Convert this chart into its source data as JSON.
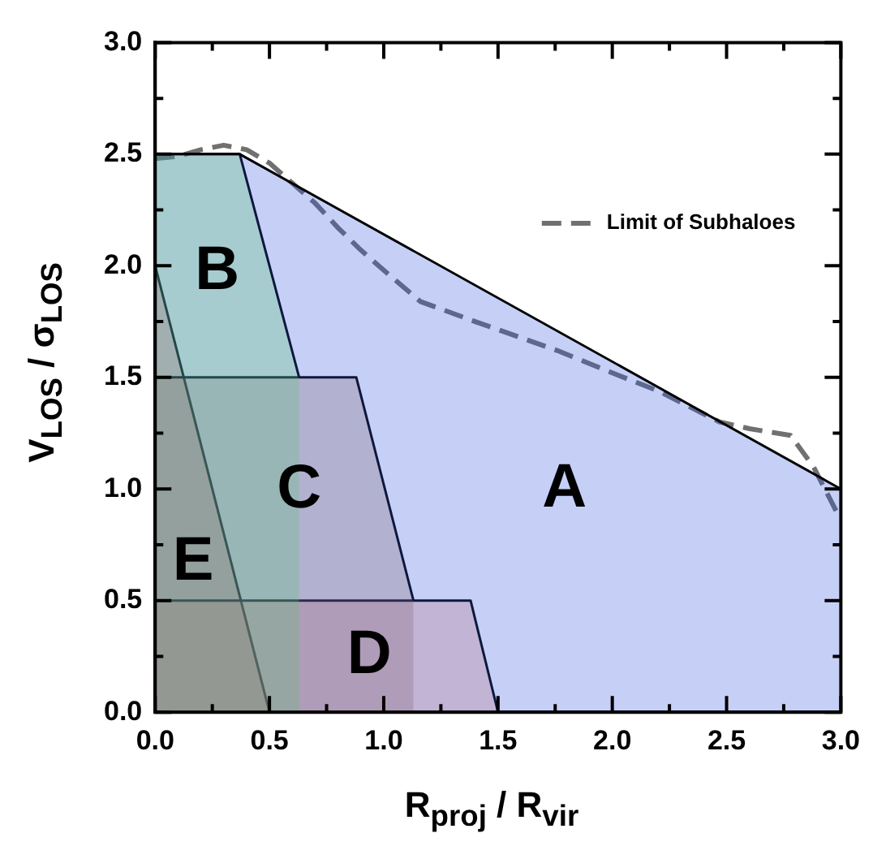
{
  "chart_data": {
    "type": "area",
    "xlabel": "R$_{proj}$ / R$_{vir}$",
    "ylabel": "V$_{LOS}$ / σ$_{LOS}$",
    "xlim": [
      0,
      3
    ],
    "ylim": [
      0,
      3
    ],
    "xticks": [
      {
        "value": 0,
        "label": "0.0"
      },
      {
        "value": 0.25,
        "label": null
      },
      {
        "value": 0.5,
        "label": "0.5"
      },
      {
        "value": 0.75,
        "label": null
      },
      {
        "value": 1,
        "label": "1.0"
      },
      {
        "value": 1.25,
        "label": null
      },
      {
        "value": 1.5,
        "label": "1.5"
      },
      {
        "value": 1.75,
        "label": null
      },
      {
        "value": 2,
        "label": "2.0"
      },
      {
        "value": 2.25,
        "label": null
      },
      {
        "value": 2.5,
        "label": "2.5"
      },
      {
        "value": 2.75,
        "label": null
      },
      {
        "value": 3,
        "label": "3.0"
      }
    ],
    "yticks": [
      {
        "value": 0,
        "label": "0.0"
      },
      {
        "value": 0.25,
        "label": null
      },
      {
        "value": 0.5,
        "label": "0.5"
      },
      {
        "value": 0.75,
        "label": null
      },
      {
        "value": 1,
        "label": "1.0"
      },
      {
        "value": 1.25,
        "label": null
      },
      {
        "value": 1.5,
        "label": "1.5"
      },
      {
        "value": 1.75,
        "label": null
      },
      {
        "value": 2,
        "label": "2.0"
      },
      {
        "value": 2.25,
        "label": null
      },
      {
        "value": 2.5,
        "label": "2.5"
      },
      {
        "value": 2.75,
        "label": null
      },
      {
        "value": 3,
        "label": "3.0"
      }
    ],
    "legend": "top right",
    "series": [
      {
        "name": "A",
        "color": "#3355dd",
        "x": [
          0,
          0.37,
          3
        ],
        "values": [
          2.5,
          2.5,
          1.0
        ]
      },
      {
        "name": "B",
        "color": "#66ee44",
        "x": [
          0,
          0.37,
          0.63
        ],
        "values": [
          2.5,
          2.5,
          1.5
        ]
      },
      {
        "name": "C",
        "color": "#996644",
        "x": [
          0,
          0.88,
          1.13
        ],
        "values": [
          1.5,
          1.5,
          0.5
        ]
      },
      {
        "name": "D",
        "color": "#ee7755",
        "x": [
          0,
          1.38,
          1.5
        ],
        "values": [
          0.5,
          0.5,
          0
        ]
      },
      {
        "name": "E",
        "color": "#dd3322",
        "x": [
          0,
          0.5
        ],
        "values": [
          2.0,
          0
        ]
      },
      {
        "type": "line",
        "name": "Limit of Subhaloes",
        "color": "#707070",
        "line_style": "dashed",
        "marker": "none",
        "x": [
          0,
          0.1,
          0.2,
          0.3,
          0.4,
          0.5,
          0.6,
          0.7,
          0.8,
          0.9,
          1.0,
          1.16,
          1.4,
          1.76,
          2.0,
          2.2,
          2.47,
          2.6,
          2.78,
          2.88,
          2.98
        ],
        "values": [
          2.48,
          2.49,
          2.52,
          2.54,
          2.52,
          2.46,
          2.37,
          2.28,
          2.17,
          2.07,
          1.98,
          1.84,
          1.75,
          1.62,
          1.52,
          1.44,
          1.3,
          1.27,
          1.24,
          1.1,
          0.9
        ]
      }
    ]
  }
}
